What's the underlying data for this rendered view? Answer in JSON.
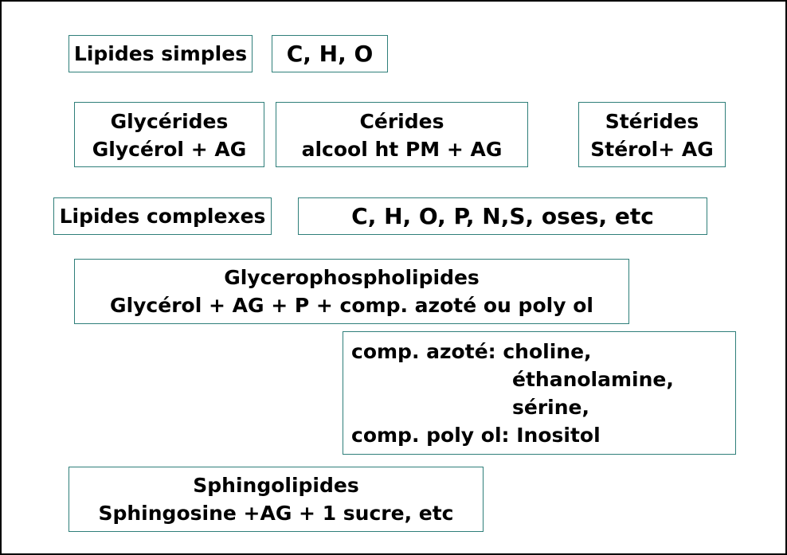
{
  "diagram": {
    "lipides_simples": {
      "label": "Lipides simples",
      "elements": "C, H, O",
      "glycerides": {
        "title": "Glycérides",
        "composition": "Glycérol + AG"
      },
      "cerides": {
        "title": "Cérides",
        "composition": "alcool ht PM + AG"
      },
      "sterides": {
        "title": "Stérides",
        "composition": "Stérol+ AG"
      }
    },
    "lipides_complexes": {
      "label": "Lipides complexes",
      "elements": "C, H, O, P, N,S, oses, etc",
      "glycerophospholipides": {
        "title": "Glycerophospholipides",
        "composition": "Glycérol + AG + P + comp. azoté ou poly ol"
      },
      "components": {
        "azote_label": "comp. azoté: choline,",
        "azote_item2": "éthanolamine,",
        "azote_item3": "sérine,",
        "polyol_line": "comp. poly ol: Inositol"
      },
      "sphingolipides": {
        "title": "Sphingolipides",
        "composition": "Sphingosine +AG + 1 sucre, etc"
      }
    }
  }
}
